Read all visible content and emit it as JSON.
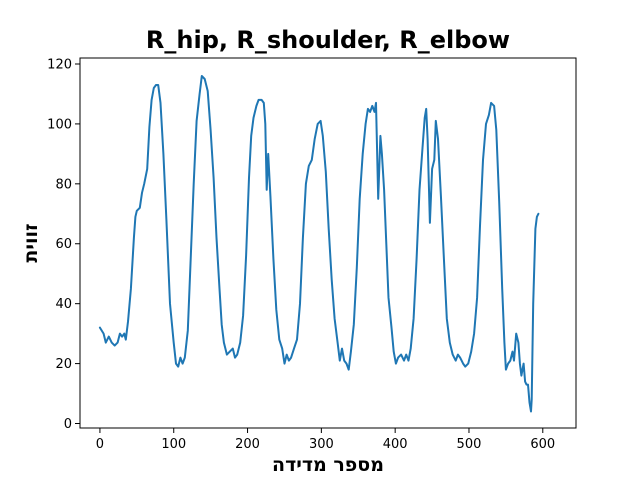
{
  "chart_data": {
    "type": "line",
    "title": "R_hip, R_shoulder, R_elbow",
    "xlabel": "מספר מדידה",
    "ylabel": "זווית",
    "xlim": [
      -27,
      645
    ],
    "ylim": [
      -1.5,
      122
    ],
    "xticks": [
      0,
      100,
      200,
      300,
      400,
      500,
      600
    ],
    "yticks": [
      0,
      20,
      40,
      60,
      80,
      100,
      120
    ],
    "grid": false,
    "series": [
      {
        "color": "#1f77b4",
        "points": [
          [
            0,
            32
          ],
          [
            5,
            30
          ],
          [
            8,
            27
          ],
          [
            12,
            29
          ],
          [
            16,
            27
          ],
          [
            20,
            26
          ],
          [
            24,
            27
          ],
          [
            27,
            30
          ],
          [
            30,
            29
          ],
          [
            33,
            30
          ],
          [
            35,
            28
          ],
          [
            38,
            34
          ],
          [
            42,
            45
          ],
          [
            46,
            62
          ],
          [
            48,
            69
          ],
          [
            50,
            71
          ],
          [
            54,
            72
          ],
          [
            57,
            77
          ],
          [
            60,
            80
          ],
          [
            64,
            85
          ],
          [
            67,
            99
          ],
          [
            70,
            108
          ],
          [
            73,
            112
          ],
          [
            76,
            113
          ],
          [
            79,
            113
          ],
          [
            82,
            107
          ],
          [
            86,
            90
          ],
          [
            90,
            68
          ],
          [
            95,
            40
          ],
          [
            100,
            27
          ],
          [
            103,
            20
          ],
          [
            106,
            19
          ],
          [
            109,
            22
          ],
          [
            112,
            20
          ],
          [
            115,
            22
          ],
          [
            119,
            31
          ],
          [
            123,
            55
          ],
          [
            127,
            80
          ],
          [
            131,
            101
          ],
          [
            135,
            110
          ],
          [
            138,
            116
          ],
          [
            142,
            115
          ],
          [
            146,
            111
          ],
          [
            150,
            98
          ],
          [
            154,
            82
          ],
          [
            158,
            62
          ],
          [
            162,
            45
          ],
          [
            165,
            33
          ],
          [
            168,
            27
          ],
          [
            172,
            23
          ],
          [
            176,
            24
          ],
          [
            180,
            25
          ],
          [
            183,
            22
          ],
          [
            186,
            23
          ],
          [
            190,
            27
          ],
          [
            194,
            36
          ],
          [
            198,
            56
          ],
          [
            202,
            82
          ],
          [
            205,
            96
          ],
          [
            208,
            102
          ],
          [
            212,
            106
          ],
          [
            215,
            108
          ],
          [
            219,
            108
          ],
          [
            222,
            107
          ],
          [
            224,
            100
          ],
          [
            226,
            78
          ],
          [
            228,
            90
          ],
          [
            231,
            76
          ],
          [
            235,
            55
          ],
          [
            239,
            38
          ],
          [
            243,
            28
          ],
          [
            247,
            25
          ],
          [
            250,
            20
          ],
          [
            253,
            23
          ],
          [
            256,
            21
          ],
          [
            259,
            22
          ],
          [
            263,
            25
          ],
          [
            267,
            28
          ],
          [
            271,
            40
          ],
          [
            275,
            62
          ],
          [
            279,
            80
          ],
          [
            283,
            86
          ],
          [
            287,
            88
          ],
          [
            291,
            95
          ],
          [
            295,
            100
          ],
          [
            299,
            101
          ],
          [
            302,
            96
          ],
          [
            306,
            84
          ],
          [
            310,
            65
          ],
          [
            314,
            48
          ],
          [
            318,
            35
          ],
          [
            322,
            27
          ],
          [
            325,
            21
          ],
          [
            328,
            25
          ],
          [
            331,
            21
          ],
          [
            334,
            20
          ],
          [
            337,
            18
          ],
          [
            340,
            24
          ],
          [
            344,
            33
          ],
          [
            348,
            52
          ],
          [
            352,
            75
          ],
          [
            356,
            90
          ],
          [
            360,
            100
          ],
          [
            363,
            105
          ],
          [
            366,
            104
          ],
          [
            369,
            106
          ],
          [
            372,
            104
          ],
          [
            374,
            107
          ],
          [
            377,
            75
          ],
          [
            380,
            96
          ],
          [
            382,
            90
          ],
          [
            385,
            78
          ],
          [
            388,
            60
          ],
          [
            391,
            42
          ],
          [
            395,
            32
          ],
          [
            398,
            24
          ],
          [
            401,
            20
          ],
          [
            404,
            22
          ],
          [
            408,
            23
          ],
          [
            412,
            21
          ],
          [
            415,
            23
          ],
          [
            418,
            21
          ],
          [
            421,
            25
          ],
          [
            425,
            35
          ],
          [
            429,
            55
          ],
          [
            433,
            78
          ],
          [
            437,
            92
          ],
          [
            440,
            102
          ],
          [
            442,
            105
          ],
          [
            444,
            95
          ],
          [
            447,
            67
          ],
          [
            450,
            85
          ],
          [
            453,
            88
          ],
          [
            455,
            101
          ],
          [
            458,
            95
          ],
          [
            462,
            76
          ],
          [
            466,
            55
          ],
          [
            470,
            35
          ],
          [
            474,
            27
          ],
          [
            478,
            23
          ],
          [
            482,
            21
          ],
          [
            485,
            23
          ],
          [
            488,
            22
          ],
          [
            492,
            20
          ],
          [
            495,
            19
          ],
          [
            499,
            20
          ],
          [
            503,
            24
          ],
          [
            507,
            30
          ],
          [
            511,
            42
          ],
          [
            515,
            66
          ],
          [
            519,
            88
          ],
          [
            523,
            100
          ],
          [
            527,
            103
          ],
          [
            530,
            107
          ],
          [
            534,
            106
          ],
          [
            537,
            98
          ],
          [
            541,
            74
          ],
          [
            545,
            45
          ],
          [
            548,
            27
          ],
          [
            550,
            18
          ],
          [
            553,
            20
          ],
          [
            556,
            21
          ],
          [
            559,
            24
          ],
          [
            561,
            21
          ],
          [
            564,
            30
          ],
          [
            567,
            27
          ],
          [
            569,
            20
          ],
          [
            571,
            16
          ],
          [
            574,
            20
          ],
          [
            576,
            14
          ],
          [
            578,
            13
          ],
          [
            580,
            13
          ],
          [
            582,
            7
          ],
          [
            584,
            4
          ],
          [
            585,
            8
          ],
          [
            587,
            40
          ],
          [
            590,
            65
          ],
          [
            592,
            69
          ],
          [
            594,
            70
          ]
        ]
      }
    ]
  }
}
